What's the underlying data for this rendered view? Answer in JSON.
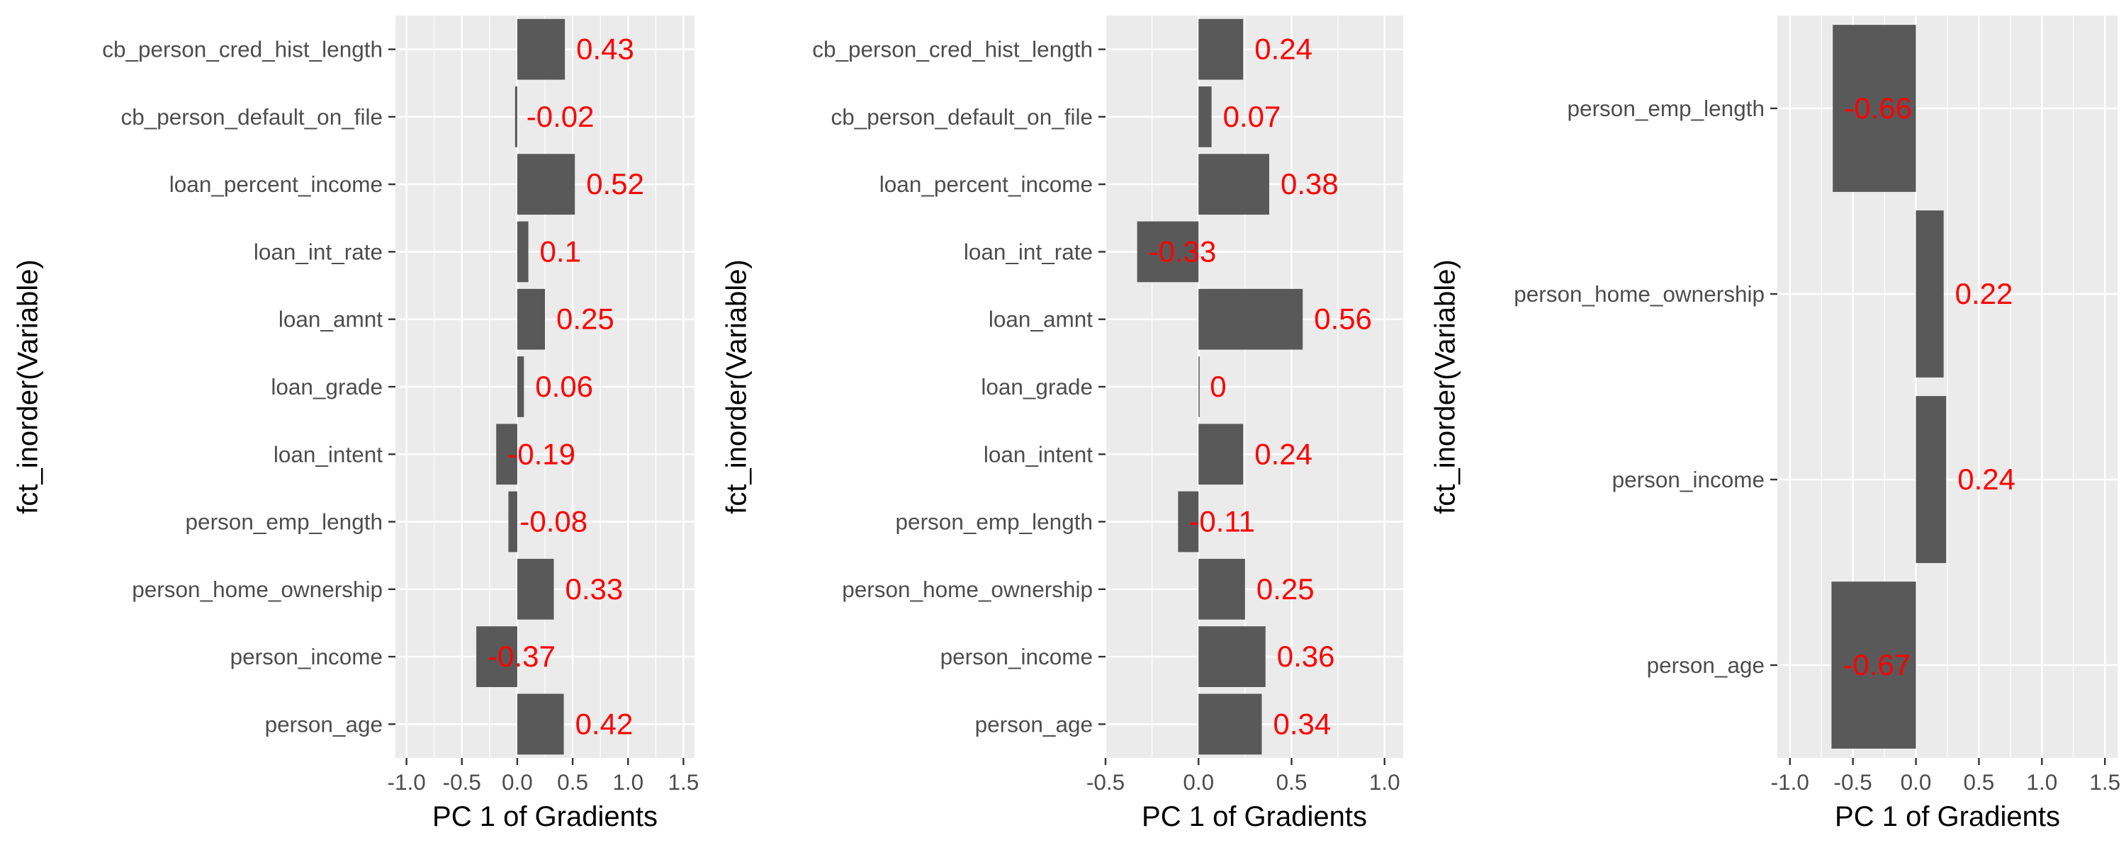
{
  "colors": {
    "panel_bg": "#EBEBEB",
    "major_grid": "#FFFFFF",
    "bar_fill": "#595959",
    "value_label": "#FF0000",
    "axis_text": "#4D4D4D",
    "title_text": "#000000"
  },
  "chart_data": [
    {
      "type": "bar",
      "orientation": "horizontal",
      "xlabel": "PC 1 of Gradients",
      "ylabel": "fct_inorder(Variable)",
      "xlim": [
        -1.1,
        1.6
      ],
      "x_ticks": [
        -1.0,
        -0.5,
        0.0,
        0.5,
        1.0,
        1.5
      ],
      "x_tick_labels": [
        "-1.0",
        "-0.5",
        "0.0",
        "0.5",
        "1.0",
        "1.5"
      ],
      "grid": true,
      "categories": [
        "cb_person_cred_hist_length",
        "cb_person_default_on_file",
        "loan_percent_income",
        "loan_int_rate",
        "loan_amnt",
        "loan_grade",
        "loan_intent",
        "person_emp_length",
        "person_home_ownership",
        "person_income",
        "person_age"
      ],
      "values": [
        0.43,
        -0.02,
        0.52,
        0.1,
        0.25,
        0.06,
        -0.19,
        -0.08,
        0.33,
        -0.37,
        0.42
      ],
      "data_labels": [
        "0.43",
        "-0.02",
        "0.52",
        "0.1",
        "0.25",
        "0.06",
        "-0.19",
        "-0.08",
        "0.33",
        "-0.37",
        "0.42"
      ]
    },
    {
      "type": "bar",
      "orientation": "horizontal",
      "xlabel": "PC 1 of Gradients",
      "ylabel": "fct_inorder(Variable)",
      "xlim": [
        -0.5,
        1.1
      ],
      "x_ticks": [
        -0.5,
        0.0,
        0.5,
        1.0
      ],
      "x_tick_labels": [
        "-0.5",
        "0.0",
        "0.5",
        "1.0"
      ],
      "grid": true,
      "categories": [
        "cb_person_cred_hist_length",
        "cb_person_default_on_file",
        "loan_percent_income",
        "loan_int_rate",
        "loan_amnt",
        "loan_grade",
        "loan_intent",
        "person_emp_length",
        "person_home_ownership",
        "person_income",
        "person_age"
      ],
      "values": [
        0.24,
        0.07,
        0.38,
        -0.33,
        0.56,
        0.0,
        0.24,
        -0.11,
        0.25,
        0.36,
        0.34
      ],
      "data_labels": [
        "0.24",
        "0.07",
        "0.38",
        "-0.33",
        "0.56",
        "0",
        "0.24",
        "-0.11",
        "0.25",
        "0.36",
        "0.34"
      ]
    },
    {
      "type": "bar",
      "orientation": "horizontal",
      "xlabel": "PC 1 of Gradients",
      "ylabel": "fct_inorder(Variable)",
      "xlim": [
        -1.1,
        1.6
      ],
      "x_ticks": [
        -1.0,
        -0.5,
        0.0,
        0.5,
        1.0,
        1.5
      ],
      "x_tick_labels": [
        "-1.0",
        "-0.5",
        "0.0",
        "0.5",
        "1.0",
        "1.5"
      ],
      "grid": true,
      "categories": [
        "person_emp_length",
        "person_home_ownership",
        "person_income",
        "person_age"
      ],
      "values": [
        -0.66,
        0.22,
        0.24,
        -0.67
      ],
      "data_labels": [
        "-0.66",
        "0.22",
        "0.24",
        "-0.67"
      ]
    }
  ]
}
